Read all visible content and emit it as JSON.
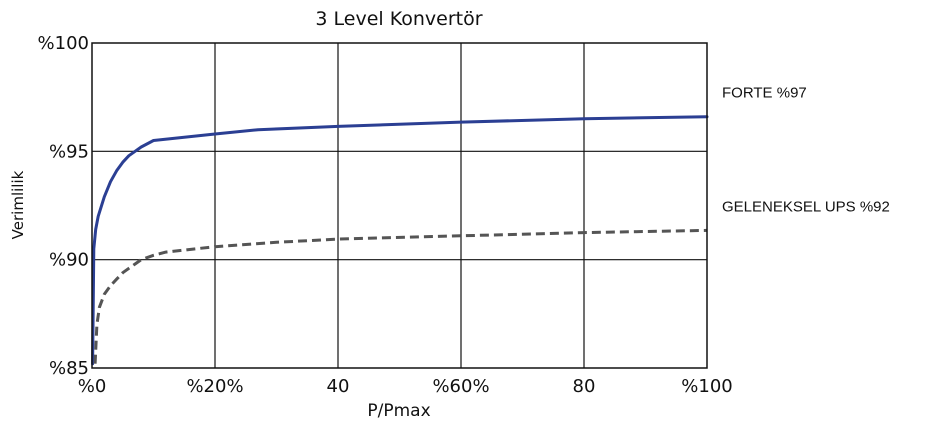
{
  "chart_data": {
    "type": "line",
    "title": "3 Level Konvertör",
    "xlabel": "P/Pmax",
    "ylabel": "Verimlilik",
    "xlim": [
      0,
      100
    ],
    "ylim": [
      85,
      100
    ],
    "x_ticks": [
      {
        "value": 0,
        "label": "%0"
      },
      {
        "value": 20,
        "label": "%20%"
      },
      {
        "value": 40,
        "label": "40"
      },
      {
        "value": 60,
        "label": "%60%"
      },
      {
        "value": 80,
        "label": "80"
      },
      {
        "value": 100,
        "label": "%100"
      }
    ],
    "y_ticks": [
      {
        "value": 85,
        "label": "%85"
      },
      {
        "value": 90,
        "label": "%90"
      },
      {
        "value": 95,
        "label": "%95"
      },
      {
        "value": 100,
        "label": "%100"
      }
    ],
    "grid": true,
    "series": [
      {
        "name": "FORTE %97",
        "color": "#2b3f93",
        "style": "solid",
        "x": [
          0.1,
          0.3,
          0.6,
          1,
          2,
          3,
          4,
          5,
          6,
          7,
          8,
          10,
          20,
          27,
          40,
          60,
          80,
          100
        ],
        "y": [
          85.2,
          90.5,
          91.4,
          92.0,
          92.9,
          93.6,
          94.1,
          94.5,
          94.8,
          95.0,
          95.2,
          95.5,
          95.8,
          96.0,
          96.15,
          96.35,
          96.5,
          96.6
        ]
      },
      {
        "name": "GELENEKSEL UPS %92",
        "color": "#555555",
        "style": "dashed",
        "x": [
          0.5,
          0.8,
          1.2,
          2,
          3,
          4,
          5,
          6,
          7,
          8,
          10,
          12,
          20,
          30,
          40,
          60,
          80,
          100
        ],
        "y": [
          85.2,
          87.0,
          87.8,
          88.4,
          88.8,
          89.1,
          89.4,
          89.6,
          89.8,
          90.0,
          90.2,
          90.35,
          90.6,
          90.8,
          90.95,
          91.1,
          91.25,
          91.35
        ]
      }
    ]
  }
}
